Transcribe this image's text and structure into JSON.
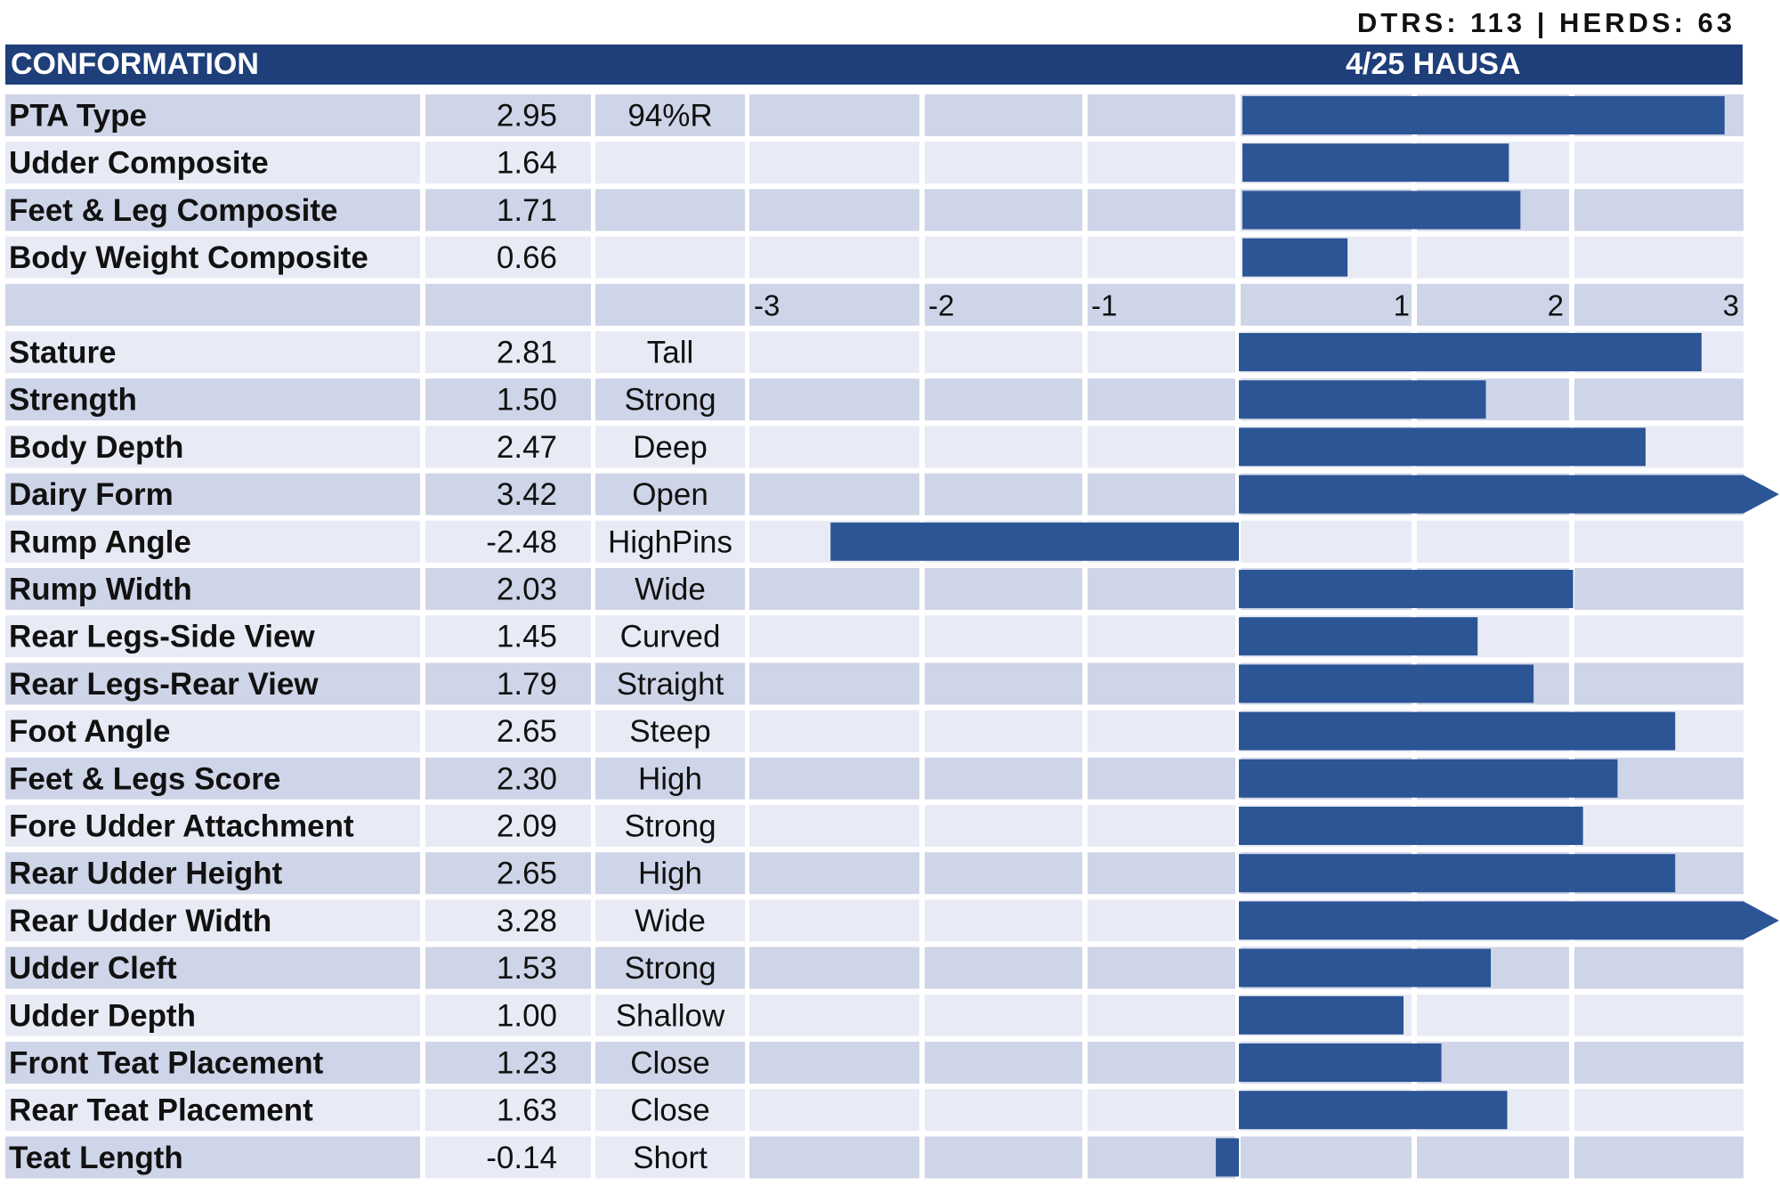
{
  "header": {
    "stats": "DTRS: 113 | HERDS: 63",
    "title": "CONFORMATION",
    "source": "4/25 HAUSA"
  },
  "colors": {
    "bar": "#2c5596",
    "header": "#1f3f7a",
    "row_dark": "#cfd5e8",
    "row_light": "#e8ebf5"
  },
  "chart_data": {
    "type": "bar",
    "orientation": "horizontal",
    "xlim": [
      -3,
      3
    ],
    "x_ticks": [
      "-3",
      "-2",
      "-1",
      "1",
      "2",
      "3"
    ],
    "composites": [
      {
        "label": "PTA Type",
        "value": 2.95,
        "display": "2.95",
        "desc": "94%R"
      },
      {
        "label": "Udder Composite",
        "value": 1.64,
        "display": "1.64",
        "desc": ""
      },
      {
        "label": "Feet & Leg Composite",
        "value": 1.71,
        "display": "1.71",
        "desc": ""
      },
      {
        "label": "Body Weight Composite",
        "value": 0.66,
        "display": "0.66",
        "desc": ""
      }
    ],
    "traits": [
      {
        "label": "Stature",
        "value": 2.81,
        "display": "2.81",
        "desc": "Tall"
      },
      {
        "label": "Strength",
        "value": 1.5,
        "display": "1.50",
        "desc": "Strong"
      },
      {
        "label": "Body Depth",
        "value": 2.47,
        "display": "2.47",
        "desc": "Deep"
      },
      {
        "label": "Dairy Form",
        "value": 3.42,
        "display": "3.42",
        "desc": "Open"
      },
      {
        "label": "Rump Angle",
        "value": -2.48,
        "display": "-2.48",
        "desc": "HighPins"
      },
      {
        "label": "Rump Width",
        "value": 2.03,
        "display": "2.03",
        "desc": "Wide"
      },
      {
        "label": "Rear Legs-Side View",
        "value": 1.45,
        "display": "1.45",
        "desc": "Curved"
      },
      {
        "label": "Rear Legs-Rear View",
        "value": 1.79,
        "display": "1.79",
        "desc": "Straight"
      },
      {
        "label": "Foot Angle",
        "value": 2.65,
        "display": "2.65",
        "desc": "Steep"
      },
      {
        "label": "Feet & Legs Score",
        "value": 2.3,
        "display": "2.30",
        "desc": "High"
      },
      {
        "label": "Fore Udder Attachment",
        "value": 2.09,
        "display": "2.09",
        "desc": "Strong"
      },
      {
        "label": "Rear Udder Height",
        "value": 2.65,
        "display": "2.65",
        "desc": "High"
      },
      {
        "label": "Rear Udder Width",
        "value": 3.28,
        "display": "3.28",
        "desc": "Wide"
      },
      {
        "label": "Udder Cleft",
        "value": 1.53,
        "display": "1.53",
        "desc": "Strong"
      },
      {
        "label": "Udder Depth",
        "value": 1.0,
        "display": "1.00",
        "desc": "Shallow"
      },
      {
        "label": "Front Teat Placement",
        "value": 1.23,
        "display": "1.23",
        "desc": "Close"
      },
      {
        "label": "Rear Teat Placement",
        "value": 1.63,
        "display": "1.63",
        "desc": "Close"
      },
      {
        "label": "Teat Length",
        "value": -0.14,
        "display": "-0.14",
        "desc": "Short"
      }
    ]
  }
}
